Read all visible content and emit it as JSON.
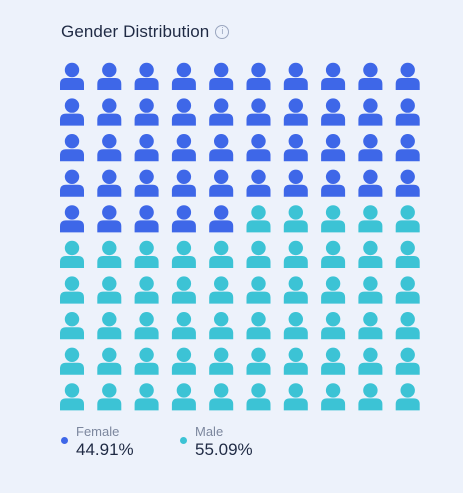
{
  "header": {
    "title": "Gender Distribution",
    "info_icon": "info-icon"
  },
  "colors": {
    "female": "#3e67e8",
    "male": "#3cc3d5"
  },
  "chart_data": {
    "type": "waffle",
    "title": "Gender Distribution",
    "total_icons": 100,
    "series": [
      {
        "name": "Female",
        "percent": 44.91,
        "display": "44.91%",
        "icon_count": 45
      },
      {
        "name": "Male",
        "percent": 55.09,
        "display": "55.09%",
        "icon_count": 55
      }
    ]
  },
  "legend": [
    {
      "label": "Female",
      "value": "44.91%"
    },
    {
      "label": "Male",
      "value": "55.09%"
    }
  ]
}
